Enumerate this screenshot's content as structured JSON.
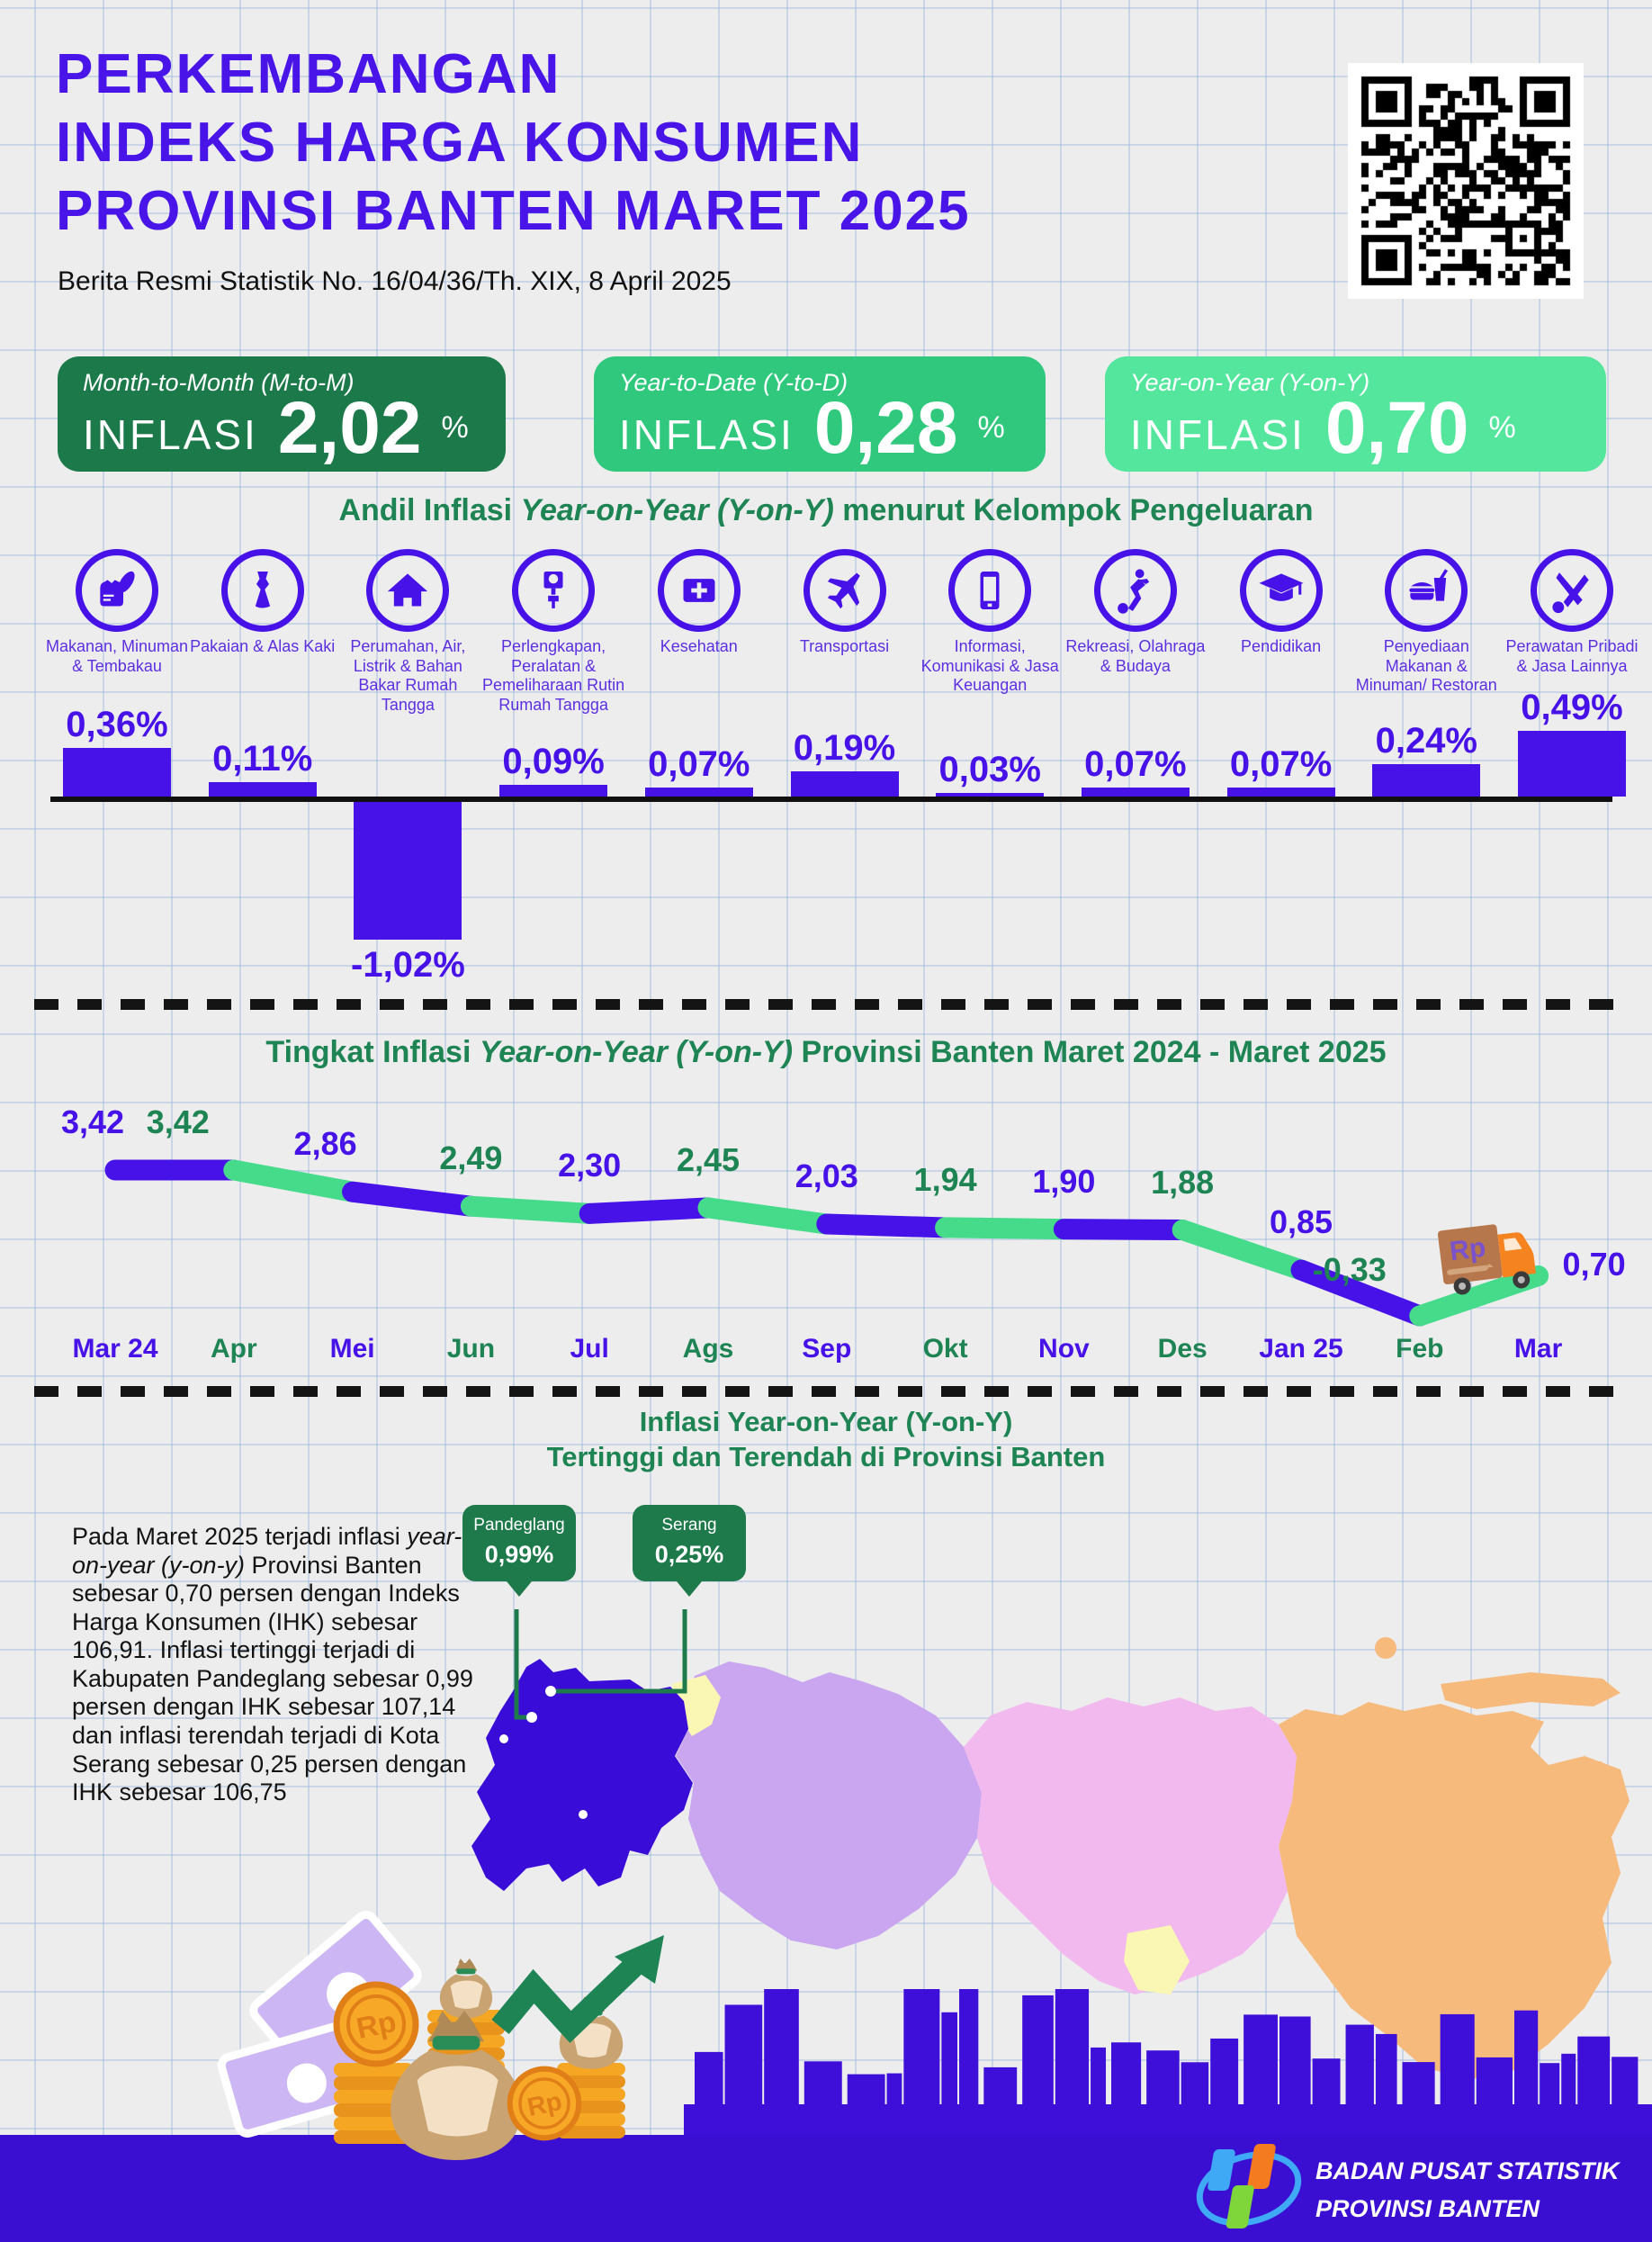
{
  "page": {
    "accent_purple": "#4712e8",
    "title_purple": "#4814e8",
    "green_dark": "#1b7a4b",
    "green_mid": "#2fc87c",
    "green_light": "#55e69e",
    "section_green": "#1e8454",
    "footer_purple": "#3b0fd2"
  },
  "header": {
    "title_line1": "PERKEMBANGAN",
    "title_line2": "INDEKS HARGA KONSUMEN",
    "title_line3": "PROVINSI BANTEN MARET 2025",
    "subtitle": "Berita Resmi Statistik No. 16/04/36/Th. XIX, 8 April 2025"
  },
  "badges": [
    {
      "period": "Month-to-Month (M-to-M)",
      "label": "INFLASI",
      "value": "2,02",
      "unit": "%",
      "bg": "#1c7a4a"
    },
    {
      "period": "Year-to-Date (Y-to-D)",
      "label": "INFLASI",
      "value": "0,28",
      "unit": "%",
      "bg": "#2fc87c"
    },
    {
      "period": "Year-on-Year (Y-on-Y)",
      "label": "INFLASI",
      "value": "0,70",
      "unit": "%",
      "bg": "#55e69e"
    }
  ],
  "sections": {
    "bar_title": {
      "prefix": "Andil Inflasi ",
      "italic": "Year-on-Year (Y-on-Y)",
      "suffix": " menurut Kelompok Pengeluaran"
    },
    "line_title": {
      "prefix": "Tingkat Inflasi ",
      "italic": "Year-on-Year (Y-on-Y)",
      "suffix": " Provinsi Banten Maret 2024 - Maret 2025"
    },
    "map_title": {
      "line1_prefix": "Inflasi ",
      "line1_italic": "Year-on-Year (Y-on-Y)",
      "line2": "Tertinggi dan Terendah di Provinsi Banten"
    }
  },
  "chart_data": [
    {
      "type": "bar",
      "title": "Andil Inflasi Year-on-Year (Y-on-Y) menurut Kelompok Pengeluaran",
      "unit": "%",
      "ylim": [
        -1.1,
        0.6
      ],
      "grid": false,
      "bar_color": "#4712e8",
      "categories": [
        "Makanan, Minuman & Tembakau",
        "Pakaian & Alas Kaki",
        "Perumahan, Air, Listrik & Bahan Bakar Rumah Tangga",
        "Perlengkapan, Peralatan & Pemeliharaan Rutin Rumah Tangga",
        "Kesehatan",
        "Transportasi",
        "Informasi, Komunikasi & Jasa Keuangan",
        "Rekreasi, Olahraga & Budaya",
        "Pendidikan",
        "Penyediaan Makanan & Minuman/ Restoran",
        "Perawatan Pribadi & Jasa Lainnya"
      ],
      "icons": [
        "food-basket-icon",
        "dress-icon",
        "house-icon",
        "plug-icon",
        "first-aid-icon",
        "plane-icon",
        "phone-icon",
        "sports-icon",
        "graduation-cap-icon",
        "food-drink-icon",
        "scissors-icon"
      ],
      "values": [
        0.36,
        0.11,
        -1.02,
        0.09,
        0.07,
        0.19,
        0.03,
        0.07,
        0.07,
        0.24,
        0.49
      ],
      "labels": [
        "0,36%",
        "0,11%",
        "-1,02%",
        "0,09%",
        "0,07%",
        "0,19%",
        "0,03%",
        "0,07%",
        "0,07%",
        "0,24%",
        "0,49%"
      ]
    },
    {
      "type": "line",
      "title": "Tingkat Inflasi Year-on-Year (Y-on-Y) Provinsi Banten Maret 2024 - Maret 2025",
      "x": [
        "Mar 24",
        "Apr",
        "Mei",
        "Jun",
        "Jul",
        "Ags",
        "Sep",
        "Okt",
        "Nov",
        "Des",
        "Jan 25",
        "Feb",
        "Mar"
      ],
      "values": [
        3.42,
        3.42,
        2.86,
        2.49,
        2.3,
        2.45,
        2.03,
        1.94,
        1.9,
        1.88,
        0.85,
        -0.33,
        0.7
      ],
      "labels": [
        "3,42",
        "3,42",
        "2,86",
        "2,49",
        "2,30",
        "2,45",
        "2,03",
        "1,94",
        "1,90",
        "1,88",
        "0,85",
        "-0,33",
        "0,70"
      ],
      "ylim": [
        -0.5,
        3.6
      ],
      "grid": false,
      "legend": "none",
      "segment_colors_alternating": [
        "#4712e8",
        "#45db8b"
      ],
      "label_colors_alternating": [
        "#4712e8",
        "#1e8454"
      ]
    }
  ],
  "map": {
    "callouts": [
      {
        "name": "Pandeglang",
        "value": "0,99%"
      },
      {
        "name": "Serang",
        "value": "0,25%"
      }
    ],
    "paragraph": {
      "part1": "Pada Maret 2025 terjadi inflasi ",
      "italic": "year-on-year (y-on-y)",
      "part2": " Provinsi Banten sebesar 0,70 persen dengan Indeks Harga Konsumen (IHK) sebesar 106,91. Inflasi tertinggi terjadi di Kabupaten Pandeglang sebesar 0,99 persen dengan IHK sebesar 107,14 dan inflasi terendah terjadi di Kota Serang sebesar 0,25 persen dengan IHK sebesar 106,75"
    }
  },
  "footer": {
    "org_line1": "BADAN PUSAT STATISTIK",
    "org_line2": "PROVINSI BANTEN"
  }
}
